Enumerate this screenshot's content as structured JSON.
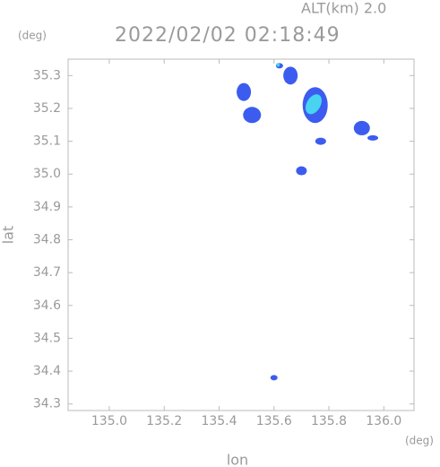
{
  "chart_data": {
    "type": "scatter",
    "title": "2022/02/02 02:18:49",
    "subtitle": "ALT(km) 2.0",
    "x_unit": "(deg)",
    "y_unit": "(deg)",
    "x_label": "lon",
    "y_label": "lat",
    "x": [
      135.49,
      135.52,
      135.62,
      135.66,
      135.75,
      135.92,
      135.77,
      135.7,
      135.6,
      135.96
    ],
    "values": [
      35.25,
      35.18,
      35.33,
      35.3,
      35.21,
      35.14,
      35.1,
      35.01,
      34.38,
      35.11
    ],
    "color": "#3c5cf0",
    "core_color": "#48d4f0",
    "xlim": [
      134.85,
      136.11
    ],
    "ylim": [
      34.28,
      35.35
    ],
    "xticks": [
      {
        "value": 135.0,
        "label": "135.0"
      },
      135.2,
      135.4,
      135.6,
      135.8,
      {
        "value": 136.0,
        "label": "136.0"
      }
    ],
    "yticks": [
      34.3,
      34.4,
      34.5,
      34.6,
      34.7,
      34.8,
      34.9,
      {
        "value": 35.0,
        "label": "35.0"
      },
      35.1,
      35.2,
      35.3
    ]
  }
}
